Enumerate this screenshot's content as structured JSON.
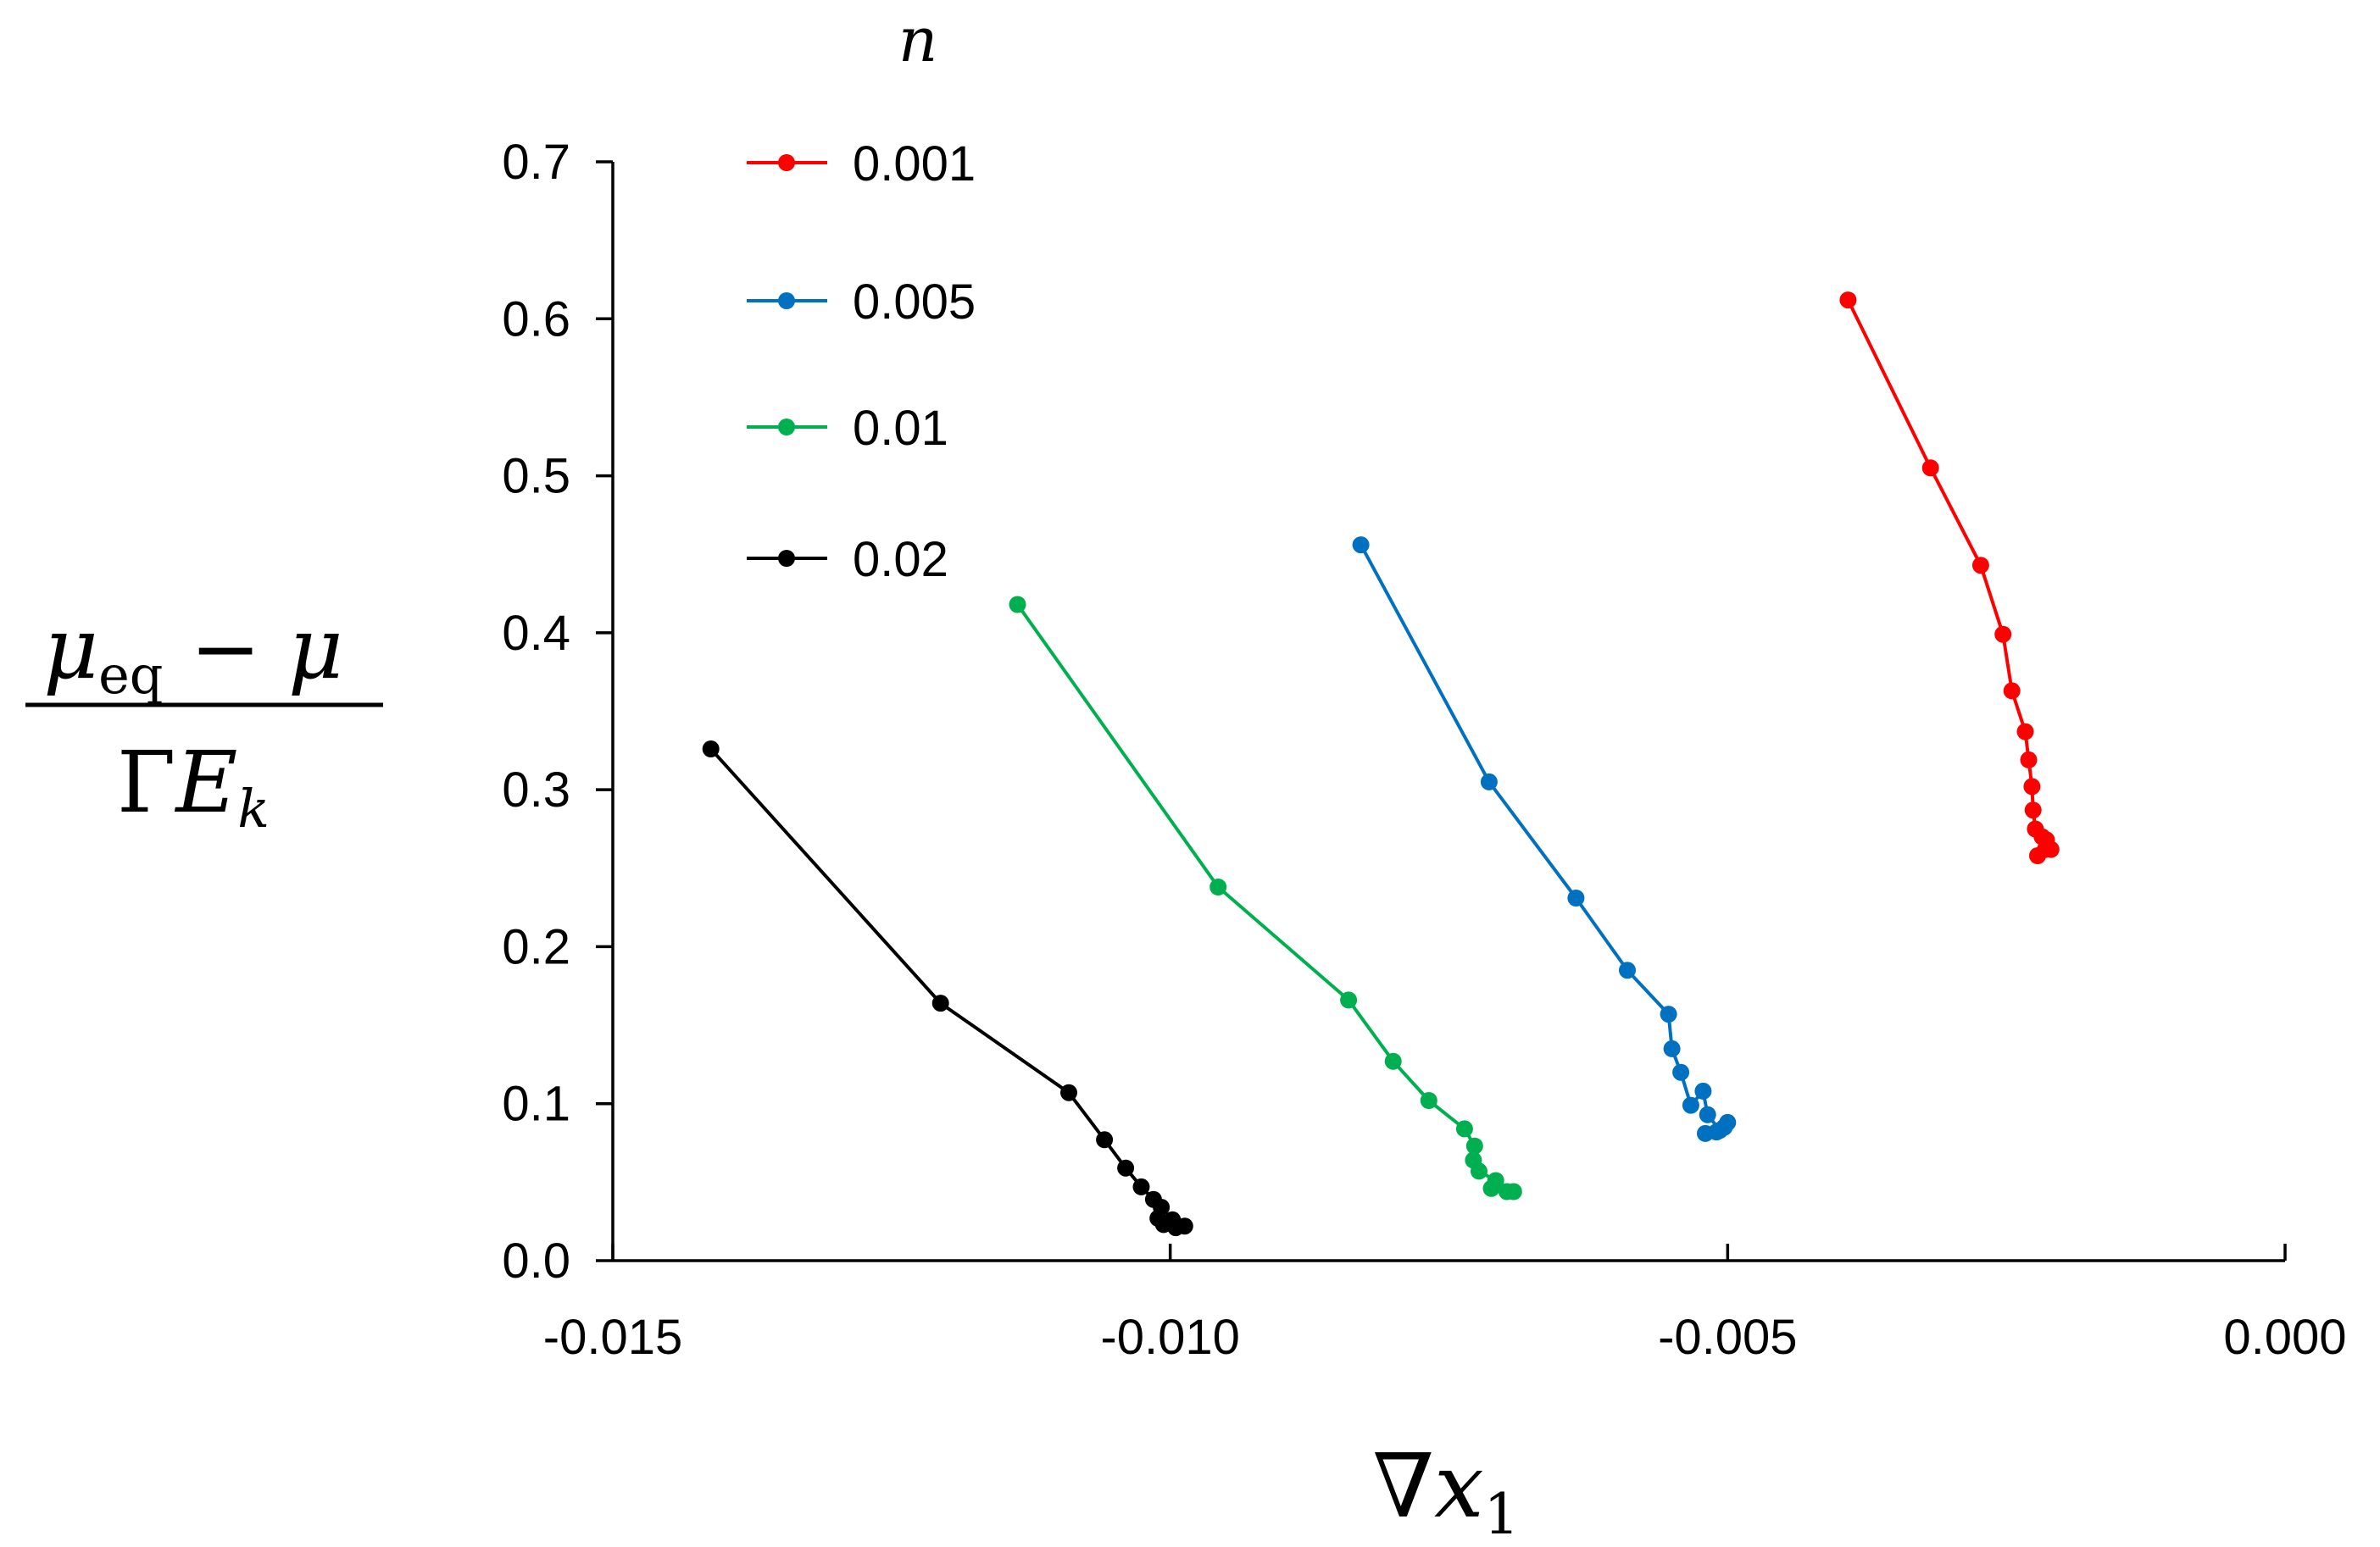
{
  "chart_data": {
    "type": "line",
    "title": "",
    "xlabel": "∇x₁",
    "ylabel": "(μeq − μ) / (ΓE_k)",
    "legend_title": "n",
    "legend_position": "top-left",
    "xlim": [
      -0.015,
      0.0
    ],
    "ylim": [
      0.0,
      0.7
    ],
    "x_ticks": [
      "-0.015",
      "-0.010",
      "-0.005",
      "0.000"
    ],
    "y_ticks": [
      "0.0",
      "0.1",
      "0.2",
      "0.3",
      "0.4",
      "0.5",
      "0.6",
      "0.7"
    ],
    "grid": false,
    "series": [
      {
        "name": "0.001",
        "color": "#ff0000",
        "x": [
          -0.00392,
          -0.00318,
          -0.00273,
          -0.00253,
          -0.00245,
          -0.00233,
          -0.0023,
          -0.00227,
          -0.00226,
          -0.00224,
          -0.00218,
          -0.00214,
          -0.0021,
          -0.00222,
          -0.00215
        ],
        "y": [
          0.612,
          0.505,
          0.443,
          0.399,
          0.363,
          0.337,
          0.319,
          0.302,
          0.287,
          0.275,
          0.27,
          0.268,
          0.262,
          0.258,
          0.262
        ]
      },
      {
        "name": "0.005",
        "color": "#0070c0",
        "x": [
          -0.00829,
          -0.00714,
          -0.00636,
          -0.0059,
          -0.00553,
          -0.0055,
          -0.00542,
          -0.00533,
          -0.00522,
          -0.00518,
          -0.00507,
          -0.005,
          -0.00503,
          -0.0052,
          -0.0051
        ],
        "y": [
          0.456,
          0.305,
          0.231,
          0.185,
          0.157,
          0.135,
          0.12,
          0.099,
          0.108,
          0.093,
          0.083,
          0.088,
          0.085,
          0.081,
          0.082
        ]
      },
      {
        "name": "0.01",
        "color": "#00b050",
        "x": [
          -0.01137,
          -0.00957,
          -0.0084,
          -0.008,
          -0.00768,
          -0.00736,
          -0.00727,
          -0.00728,
          -0.00723,
          -0.00708,
          -0.00712,
          -0.00698,
          -0.00692
        ],
        "y": [
          0.418,
          0.238,
          0.166,
          0.127,
          0.102,
          0.084,
          0.073,
          0.064,
          0.057,
          0.051,
          0.046,
          0.044,
          0.044
        ]
      },
      {
        "name": "0.02",
        "color": "#000000",
        "x": [
          -0.01412,
          -0.01206,
          -0.01091,
          -0.01059,
          -0.0104,
          -0.01026,
          -0.01015,
          -0.01008,
          -0.01011,
          -0.01006,
          -0.00995,
          -0.00987,
          -0.00998
        ],
        "y": [
          0.326,
          0.164,
          0.107,
          0.077,
          0.059,
          0.047,
          0.039,
          0.034,
          0.027,
          0.023,
          0.021,
          0.022,
          0.026
        ]
      }
    ]
  }
}
